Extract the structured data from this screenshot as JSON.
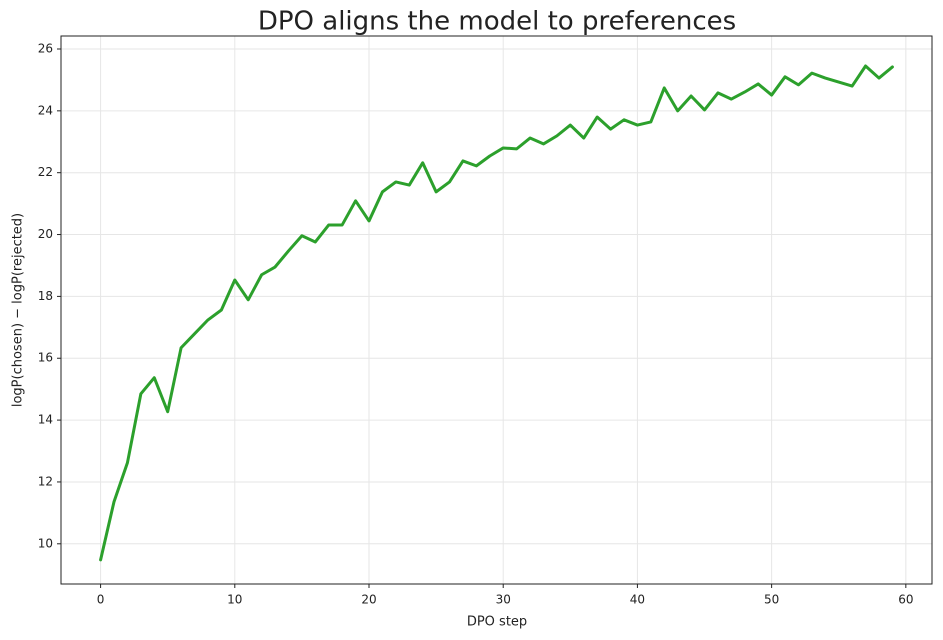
{
  "chart_data": {
    "type": "line",
    "title": "DPO aligns the model to preferences",
    "x_label": "DPO step",
    "y_label": "logP(chosen) − logP(rejected)",
    "x": [
      0,
      1,
      2,
      3,
      4,
      5,
      6,
      7,
      8,
      9,
      10,
      11,
      12,
      13,
      14,
      15,
      16,
      17,
      18,
      19,
      20,
      21,
      22,
      23,
      24,
      25,
      26,
      27,
      28,
      29,
      30,
      31,
      32,
      33,
      34,
      35,
      36,
      37,
      38,
      39,
      40,
      41,
      42,
      43,
      44,
      45,
      46,
      47,
      48,
      49,
      50,
      51,
      52,
      53,
      54,
      55,
      56,
      57,
      58,
      59
    ],
    "series": [
      {
        "name": "logP(chosen) − logP(rejected)",
        "color": "#2ca02c",
        "values": [
          9.48,
          11.36,
          12.62,
          14.85,
          15.37,
          14.27,
          16.34,
          16.79,
          17.24,
          17.56,
          18.53,
          17.89,
          18.7,
          18.95,
          19.47,
          19.96,
          19.76,
          20.31,
          20.31,
          21.09,
          20.44,
          21.38,
          21.7,
          21.6,
          22.32,
          21.38,
          21.7,
          22.38,
          22.22,
          22.54,
          22.8,
          22.77,
          23.12,
          22.93,
          23.19,
          23.54,
          23.12,
          23.8,
          23.41,
          23.71,
          23.54,
          23.64,
          24.74,
          24.0,
          24.48,
          24.03,
          24.58,
          24.38,
          24.61,
          24.87,
          24.51,
          25.1,
          24.84,
          25.22,
          25.06,
          24.93,
          24.8,
          25.45,
          25.06,
          25.42
        ]
      }
    ],
    "xlim": [
      -2.95,
      61.95
    ],
    "ylim": [
      8.7,
      26.42
    ],
    "xticks": [
      0,
      10,
      20,
      30,
      40,
      50,
      60
    ],
    "yticks": [
      10,
      12,
      14,
      16,
      18,
      20,
      22,
      24,
      26
    ],
    "grid": true
  }
}
